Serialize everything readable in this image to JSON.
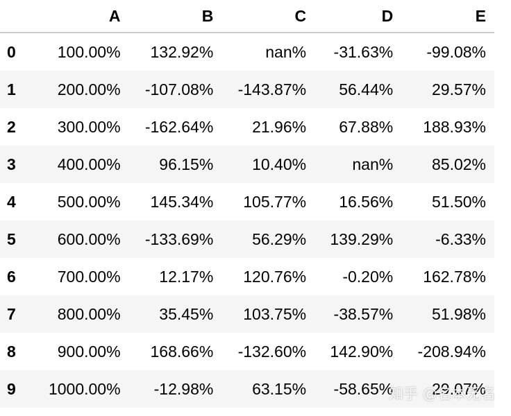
{
  "table": {
    "columns": [
      "",
      "A",
      "B",
      "C",
      "D",
      "E"
    ],
    "rows": [
      {
        "index": "0",
        "A": "100.00%",
        "B": "132.92%",
        "C": "nan%",
        "D": "-31.63%",
        "E": "-99.08%"
      },
      {
        "index": "1",
        "A": "200.00%",
        "B": "-107.08%",
        "C": "-143.87%",
        "D": "56.44%",
        "E": "29.57%"
      },
      {
        "index": "2",
        "A": "300.00%",
        "B": "-162.64%",
        "C": "21.96%",
        "D": "67.88%",
        "E": "188.93%"
      },
      {
        "index": "3",
        "A": "400.00%",
        "B": "96.15%",
        "C": "10.40%",
        "D": "nan%",
        "E": "85.02%"
      },
      {
        "index": "4",
        "A": "500.00%",
        "B": "145.34%",
        "C": "105.77%",
        "D": "16.56%",
        "E": "51.50%"
      },
      {
        "index": "5",
        "A": "600.00%",
        "B": "-133.69%",
        "C": "56.29%",
        "D": "139.29%",
        "E": "-6.33%"
      },
      {
        "index": "6",
        "A": "700.00%",
        "B": "12.17%",
        "C": "120.76%",
        "D": "-0.20%",
        "E": "162.78%"
      },
      {
        "index": "7",
        "A": "800.00%",
        "B": "35.45%",
        "C": "103.75%",
        "D": "-38.57%",
        "E": "51.98%"
      },
      {
        "index": "8",
        "A": "900.00%",
        "B": "168.66%",
        "C": "-132.60%",
        "D": "142.90%",
        "E": "-208.94%"
      },
      {
        "index": "9",
        "A": "1000.00%",
        "B": "-12.98%",
        "C": "63.15%",
        "D": "-58.65%",
        "E": "29.07%"
      }
    ]
  },
  "watermark": "知乎 @名本无名",
  "colors": {
    "header_border": "#cccccc",
    "stripe": "#f5f5f5",
    "text": "#000000"
  }
}
